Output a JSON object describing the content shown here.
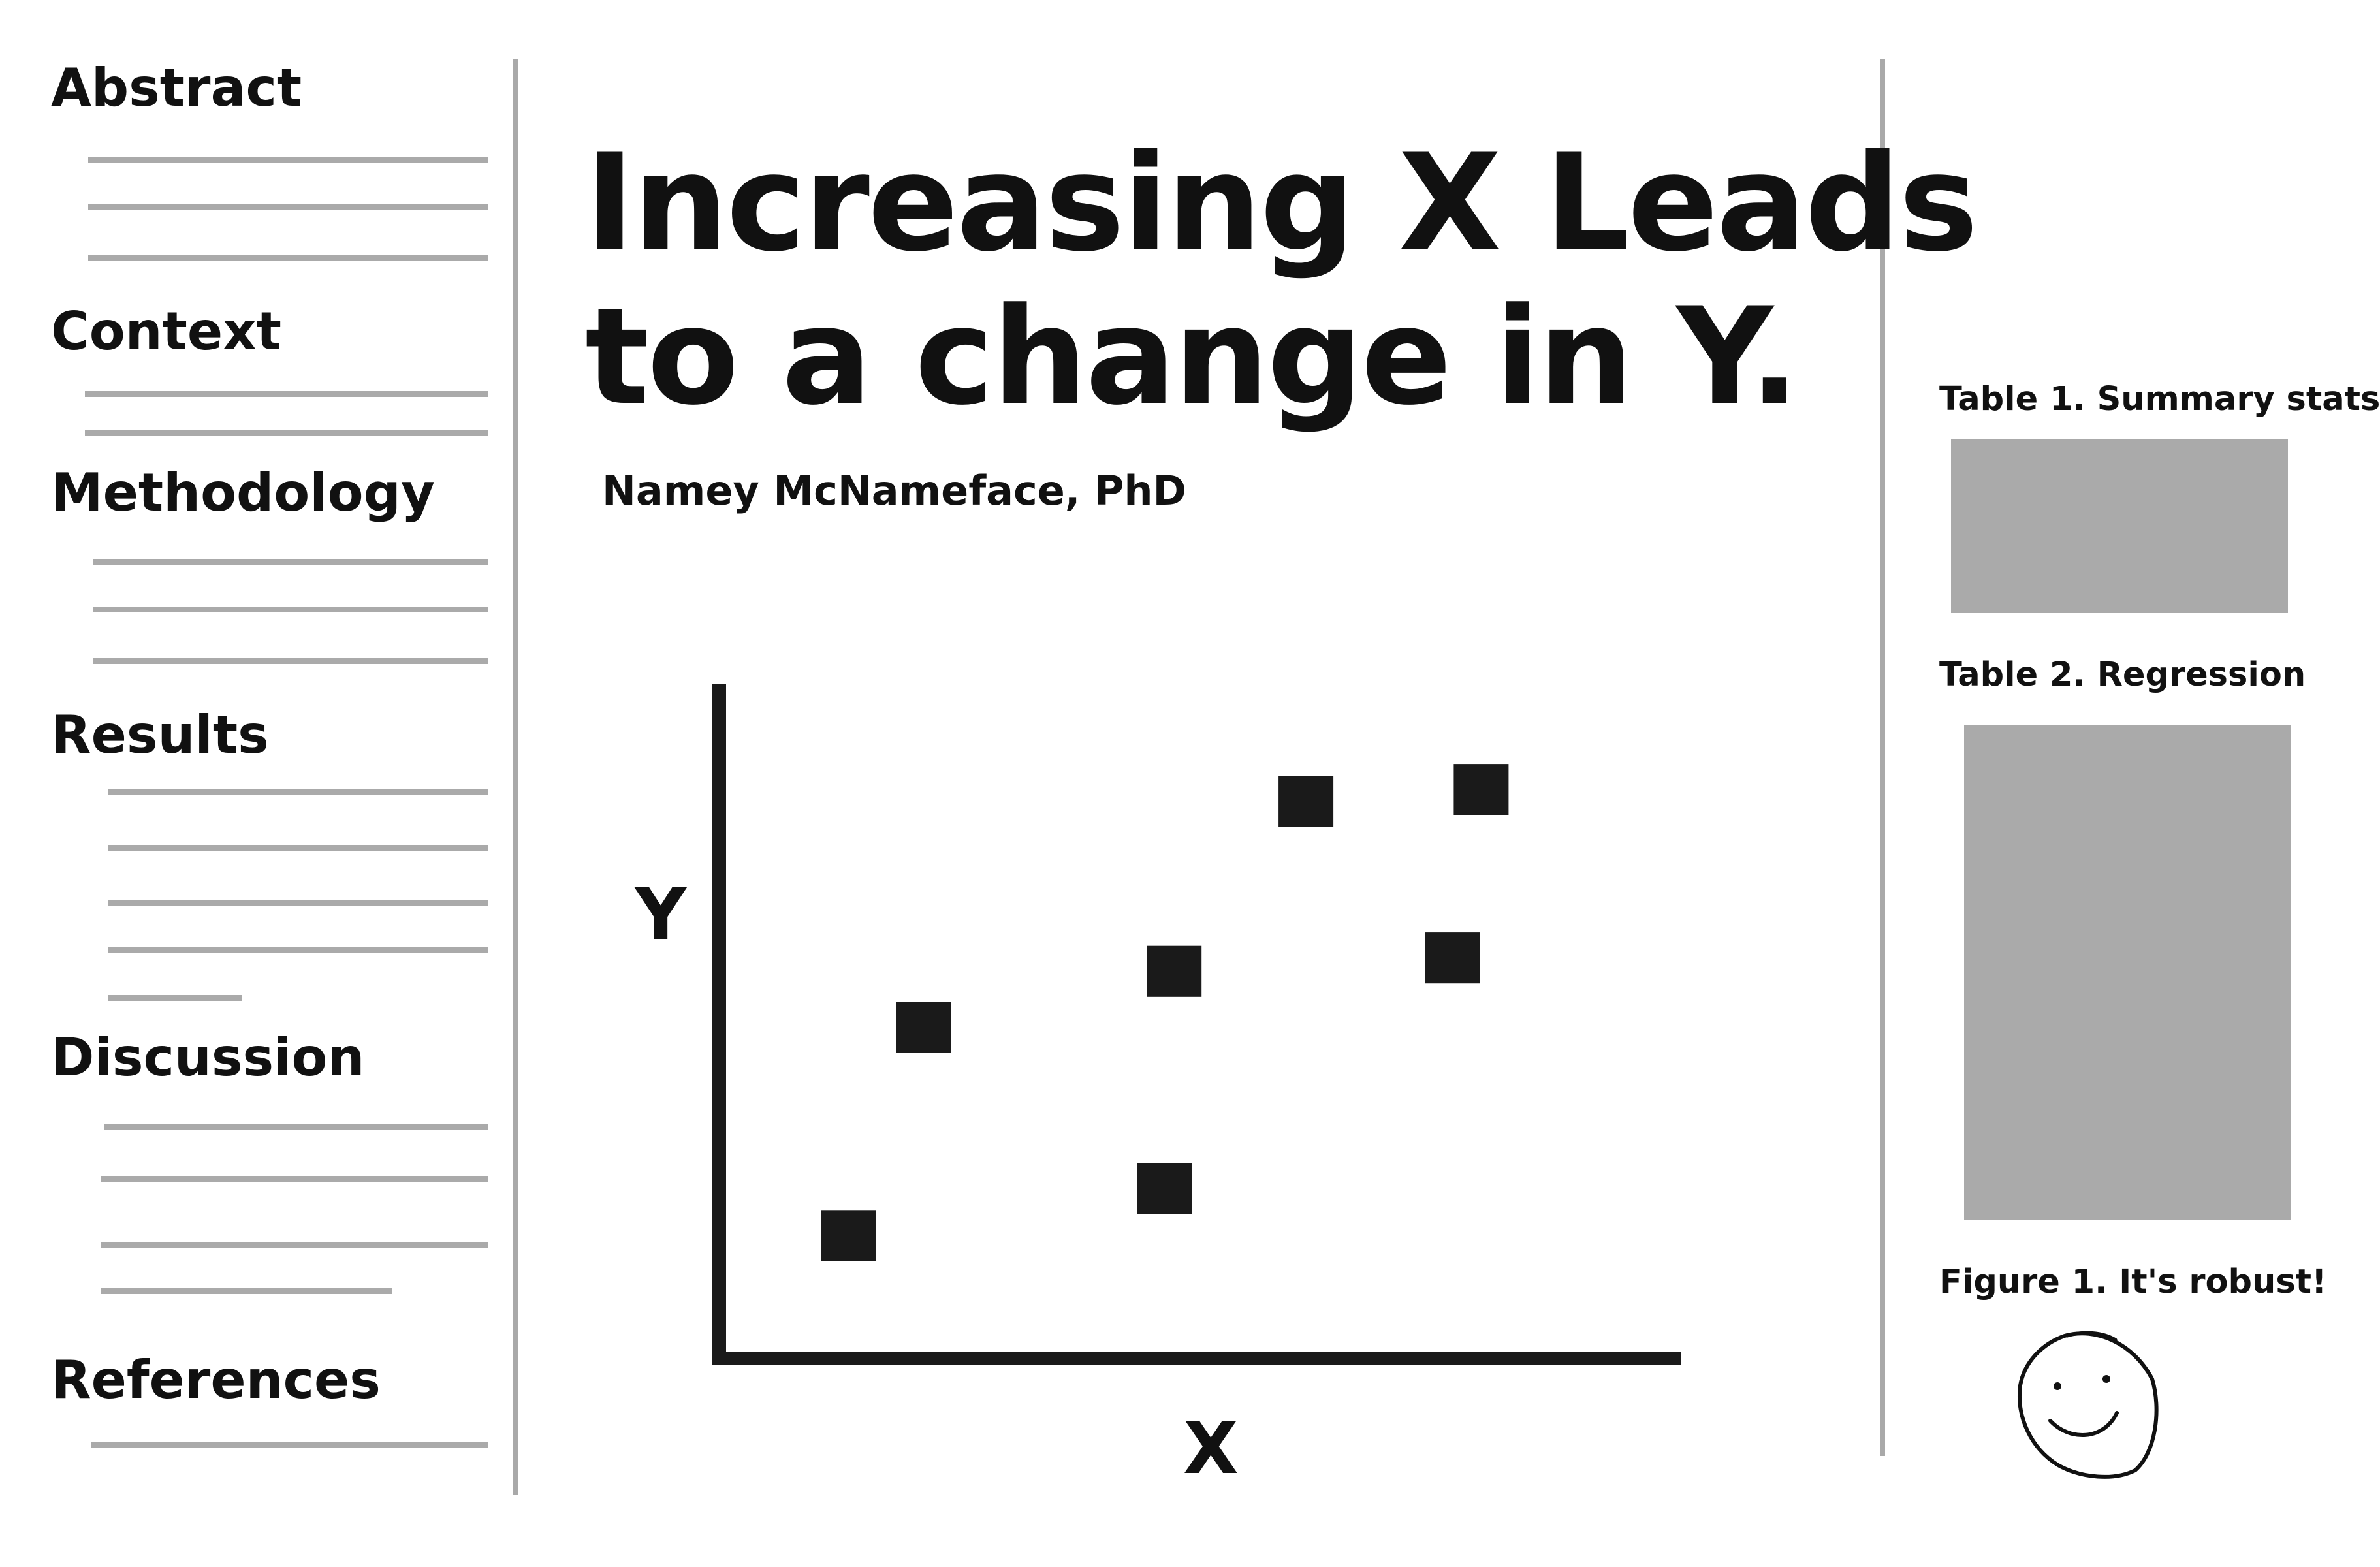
{
  "colors": {
    "line": "#aaaaaa",
    "ink": "#1a1a1a",
    "placeholder": "#aaaaaa"
  },
  "sidebar": {
    "sections": [
      {
        "label": "Abstract"
      },
      {
        "label": "Context"
      },
      {
        "label": "Methodology"
      },
      {
        "label": "Results"
      },
      {
        "label": "Discussion"
      },
      {
        "label": "References"
      }
    ]
  },
  "poster": {
    "title_line1": "Increasing X Leads",
    "title_line2": "to a change in Y.",
    "author": "Namey McNameface, PhD"
  },
  "chart_data": {
    "type": "scatter",
    "xlabel": "X",
    "ylabel": "Y",
    "xlim": [
      0,
      100
    ],
    "ylim": [
      0,
      100
    ],
    "grid": false,
    "points": [
      {
        "x": 13.5,
        "y": 17.9
      },
      {
        "x": 21.3,
        "y": 48.8
      },
      {
        "x": 46.3,
        "y": 24.9
      },
      {
        "x": 47.3,
        "y": 57.1
      },
      {
        "x": 61.0,
        "y": 82.3
      },
      {
        "x": 76.2,
        "y": 59.1
      },
      {
        "x": 79.2,
        "y": 84.1
      }
    ]
  },
  "right_panel": {
    "table1_caption": "Table 1. Summary stats",
    "table2_caption": "Table 2. Regression",
    "figure1_caption": "Figure 1.  It's robust!",
    "figure1_icon": "smiley-face-icon"
  }
}
